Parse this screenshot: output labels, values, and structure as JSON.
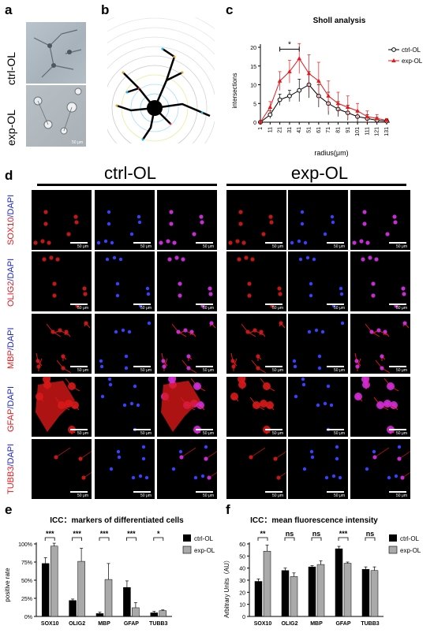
{
  "panel_letters": {
    "a": "a",
    "b": "b",
    "c": "c",
    "d": "d",
    "e": "e",
    "f": "f"
  },
  "panel_a": {
    "top_label": "ctrl-OL",
    "bottom_label": "exp-OL",
    "scale": "50 μm"
  },
  "sholl": {
    "title": "Sholl analysis",
    "xlabel": "radius(μm)",
    "ylabel": "intersections",
    "significance": "*",
    "legend": [
      {
        "name": "ctrl-OL",
        "color": "#000000"
      },
      {
        "name": "exp-OL",
        "color": "#e8171b"
      }
    ]
  },
  "panel_d": {
    "ctrl_header": "ctrl-OL",
    "exp_header": "exp-OL",
    "scale": "50 μm",
    "rows": [
      {
        "marker": "SOX10",
        "stain": "/DAPI"
      },
      {
        "marker": "OLIG2",
        "stain": "/DAPI"
      },
      {
        "marker": "MBP",
        "stain": "/DAPI"
      },
      {
        "marker": "GFAP",
        "stain": "/DAPI"
      },
      {
        "marker": "TUBB3",
        "stain": "/DAPI"
      }
    ]
  },
  "panel_e": {
    "title": "ICC：markers of differentiated cells",
    "ylabel": "positive rate",
    "legend": [
      "ctrl-OL",
      "exp-OL"
    ]
  },
  "panel_f": {
    "title": "ICC：mean fluorescence intensity",
    "ylabel": "Arbitrary Units（AU）",
    "legend": [
      "ctrl-OL",
      "exp-OL"
    ]
  },
  "chart_data": [
    {
      "type": "line",
      "title": "Sholl analysis",
      "xlabel": "radius(μm)",
      "ylabel": "intersections",
      "x": [
        "1",
        "11",
        "21",
        "31",
        "41",
        "51",
        "61",
        "71",
        "81",
        "91",
        "101",
        "111",
        "121",
        "131"
      ],
      "ylim": [
        0,
        20
      ],
      "yticks": [
        0,
        5,
        10,
        15,
        20
      ],
      "series": [
        {
          "name": "ctrl-OL",
          "color": "#000000",
          "marker": "circle",
          "values": [
            0,
            2,
            6,
            7,
            8.5,
            10,
            7,
            5,
            3.5,
            2.5,
            1.5,
            1,
            0.5,
            0.3
          ],
          "errors": [
            0,
            1,
            1.5,
            1.5,
            3,
            3.5,
            3,
            3,
            2,
            2,
            1.5,
            1,
            0.8,
            0.5
          ]
        },
        {
          "name": "exp-OL",
          "color": "#e8171b",
          "marker": "triangle",
          "values": [
            0,
            4,
            11,
            13.5,
            17,
            13,
            11,
            7,
            5,
            4,
            3,
            1.5,
            1,
            0.5
          ],
          "errors": [
            0,
            1.5,
            2.5,
            3,
            4,
            5,
            5,
            4,
            3,
            3,
            2,
            1.5,
            1,
            0.5
          ]
        }
      ],
      "annotations": [
        {
          "text": "*",
          "from": "21",
          "to": "41"
        }
      ]
    },
    {
      "type": "bar",
      "title": "ICC：markers of differentiated cells",
      "ylabel": "positive rate",
      "categories": [
        "SOX10",
        "OLIG2",
        "MBP",
        "GFAP",
        "TUBB3"
      ],
      "ylim": [
        0,
        1.0
      ],
      "yticks": [
        "0%",
        "25%",
        "50%",
        "75%",
        "100%"
      ],
      "series": [
        {
          "name": "ctrl-OL",
          "color": "#000000",
          "values": [
            0.73,
            0.22,
            0.04,
            0.4,
            0.05
          ],
          "errors": [
            0.08,
            0.02,
            0.02,
            0.09,
            0.02
          ]
        },
        {
          "name": "exp-OL",
          "color": "#a9a9a9",
          "values": [
            0.97,
            0.76,
            0.51,
            0.12,
            0.08
          ],
          "errors": [
            0.04,
            0.18,
            0.22,
            0.07,
            0.01
          ]
        }
      ],
      "significance": [
        "***",
        "***",
        "***",
        "***",
        "*"
      ]
    },
    {
      "type": "bar",
      "title": "ICC：mean fluorescence intensity",
      "ylabel": "Arbitrary Units（AU）",
      "categories": [
        "SOX10",
        "OLIG2",
        "MBP",
        "GFAP",
        "TUBB3"
      ],
      "ylim": [
        0,
        60
      ],
      "yticks": [
        0,
        10,
        20,
        30,
        40,
        50,
        60
      ],
      "series": [
        {
          "name": "ctrl-OL",
          "color": "#000000",
          "values": [
            29,
            38,
            41,
            56,
            39
          ],
          "errors": [
            2,
            2,
            1,
            2,
            2
          ]
        },
        {
          "name": "exp-OL",
          "color": "#a9a9a9",
          "values": [
            54,
            33,
            43,
            44,
            38
          ],
          "errors": [
            5,
            3,
            3,
            1,
            3
          ]
        }
      ],
      "significance": [
        "**",
        "ns",
        "ns",
        "***",
        "ns"
      ]
    }
  ]
}
